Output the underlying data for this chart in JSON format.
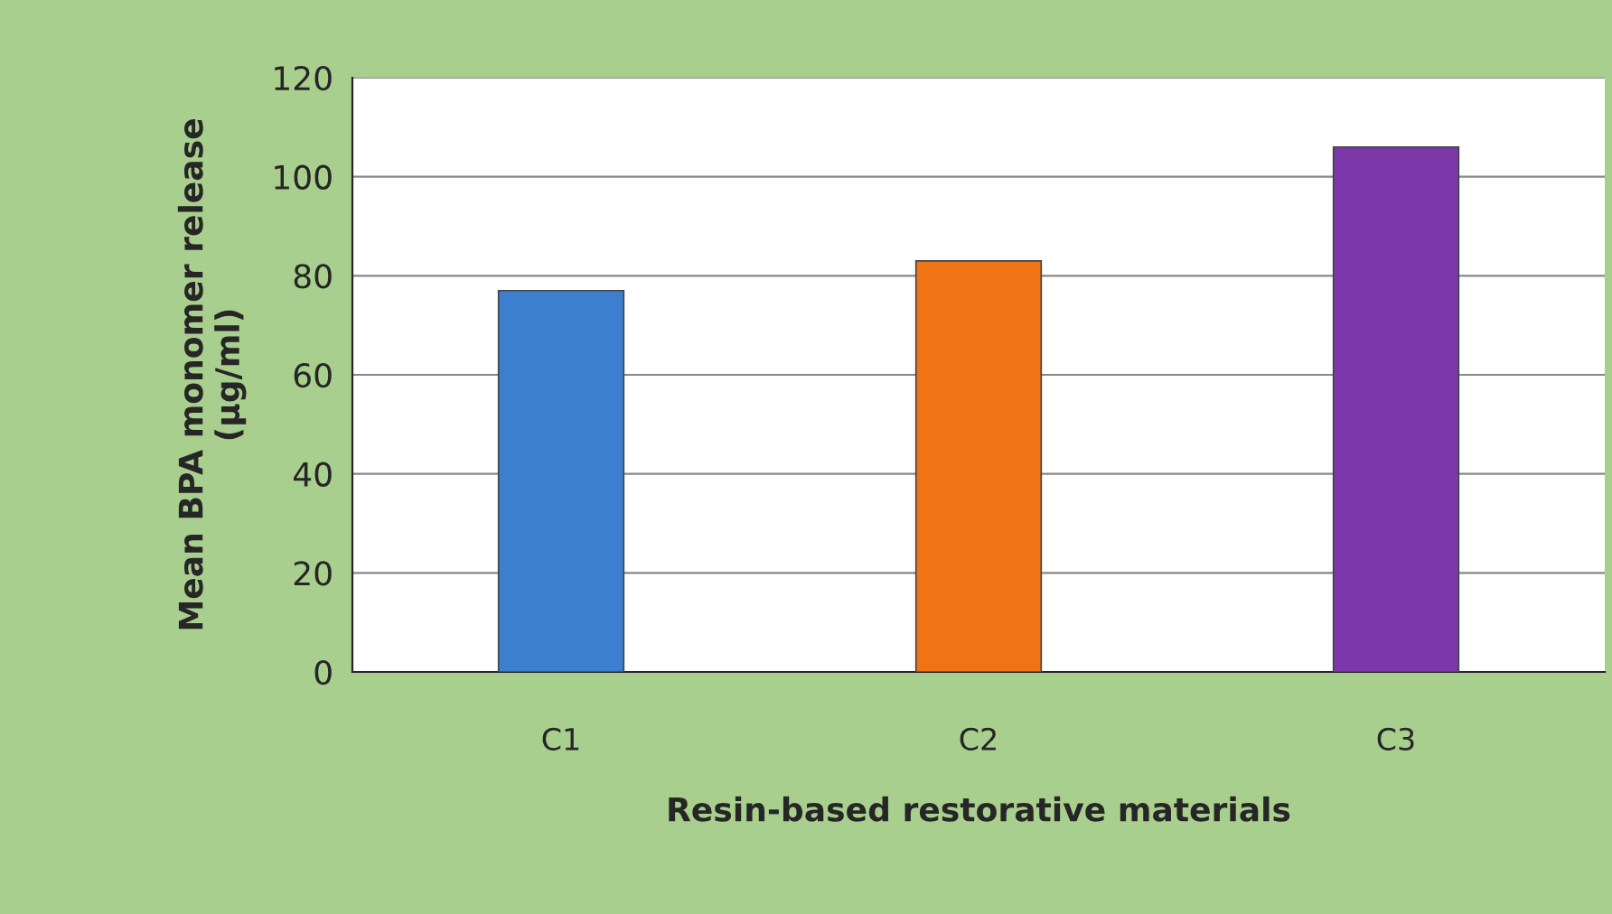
{
  "chart_data": {
    "type": "bar",
    "xlabel": "Resin-based restorative materials",
    "ylabel": "Mean BPA monomer release\n(µg/ml)",
    "categories": [
      "C1",
      "C2",
      "C3"
    ],
    "values": [
      77,
      83,
      106
    ],
    "colors": [
      "#3d7fcf",
      "#f07414",
      "#7a38a8"
    ],
    "ylim": [
      0,
      120
    ],
    "yticks": [
      0,
      20,
      40,
      60,
      80,
      100,
      120
    ],
    "grid": "y",
    "legend": false
  }
}
